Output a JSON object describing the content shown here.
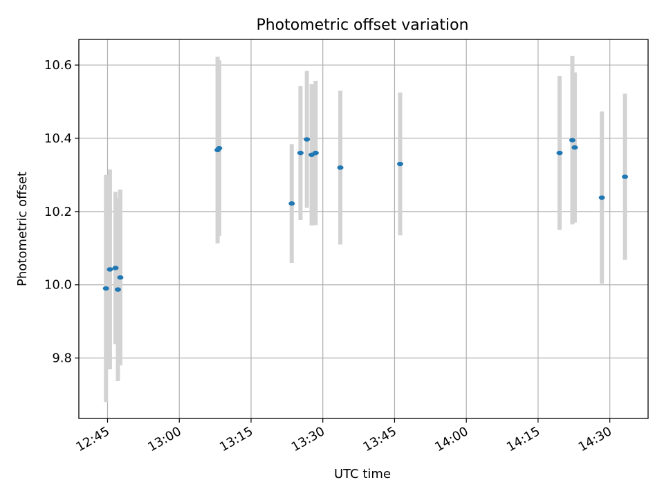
{
  "chart_data": {
    "type": "scatter",
    "title": "Photometric offset variation",
    "xlabel": "UTC time",
    "ylabel": "Photometric offset",
    "x_unit": "HH:MM",
    "xlim": [
      "12:39",
      "14:38"
    ],
    "ylim": [
      9.635,
      10.67
    ],
    "grid": true,
    "x_ticks": [
      "12:45",
      "13:00",
      "13:15",
      "13:30",
      "13:45",
      "14:00",
      "14:15",
      "14:30"
    ],
    "y_ticks": [
      9.8,
      10.0,
      10.2,
      10.4,
      10.6
    ],
    "y_tick_labels": [
      "9.8",
      "10.0",
      "10.2",
      "10.4",
      "10.6"
    ],
    "colors": {
      "marker": "#1f77b4",
      "errorbar": "#d3d3d3",
      "grid": "#b0b0b0"
    },
    "points": [
      {
        "x": "12:44:40",
        "y": 9.99,
        "yerr": 0.31
      },
      {
        "x": "12:45:30",
        "y": 10.042,
        "yerr": 0.273
      },
      {
        "x": "12:46:40",
        "y": 10.046,
        "yerr": 0.208
      },
      {
        "x": "12:47:10",
        "y": 9.987,
        "yerr": 0.25
      },
      {
        "x": "12:47:40",
        "y": 10.02,
        "yerr": 0.24
      },
      {
        "x": "13:08:00",
        "y": 10.368,
        "yerr": 0.255
      },
      {
        "x": "13:08:20",
        "y": 10.373,
        "yerr": 0.24
      },
      {
        "x": "13:23:30",
        "y": 10.222,
        "yerr": 0.162
      },
      {
        "x": "13:25:20",
        "y": 10.36,
        "yerr": 0.183
      },
      {
        "x": "13:26:40",
        "y": 10.397,
        "yerr": 0.187
      },
      {
        "x": "13:27:40",
        "y": 10.355,
        "yerr": 0.193
      },
      {
        "x": "13:28:30",
        "y": 10.36,
        "yerr": 0.197
      },
      {
        "x": "13:33:40",
        "y": 10.32,
        "yerr": 0.21
      },
      {
        "x": "13:46:10",
        "y": 10.33,
        "yerr": 0.195
      },
      {
        "x": "14:19:30",
        "y": 10.36,
        "yerr": 0.21
      },
      {
        "x": "14:22:10",
        "y": 10.395,
        "yerr": 0.23
      },
      {
        "x": "14:22:40",
        "y": 10.375,
        "yerr": 0.205
      },
      {
        "x": "14:28:20",
        "y": 10.238,
        "yerr": 0.235
      },
      {
        "x": "14:33:10",
        "y": 10.295,
        "yerr": 0.227
      }
    ]
  }
}
